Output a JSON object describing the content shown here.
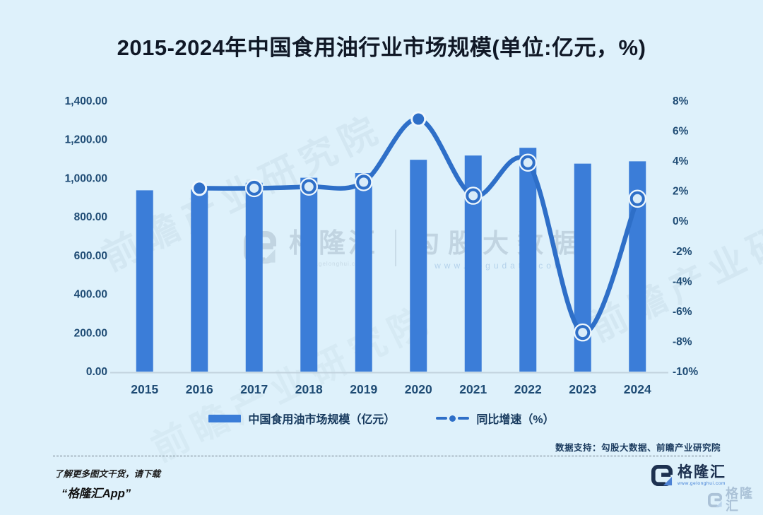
{
  "page": {
    "background": "#def1fb",
    "title": "2015-2024年中国食用油行业市场规模(单位:亿元，%)"
  },
  "legend": {
    "bar_label": "中国食用油市场规模（亿元）",
    "line_label": "同比增速（%）"
  },
  "data_support": "数据支持：勾股大数据、前瞻产业研究院",
  "footer": {
    "promo_line1": "了解更多图文干货，请下载",
    "promo_line2": "“格隆汇App”",
    "brand_name": "格隆汇",
    "brand_url": "www.gelonghui.com"
  },
  "watermarks": {
    "center_brand": "格隆汇",
    "center_brand_url": "www.gelonghui.com",
    "center_data": "勾股大数据",
    "center_data_url": "www.gogudata.com",
    "diagonal_text": "前瞻产业研究院"
  },
  "chart_data": {
    "type": "combo_bar_line",
    "title": "2015-2024年中国食用油行业市场规模(单位:亿元，%)",
    "categories": [
      "2015",
      "2016",
      "2017",
      "2018",
      "2019",
      "2020",
      "2021",
      "2022",
      "2023",
      "2024"
    ],
    "series": [
      {
        "name": "中国食用油市场规模（亿元）",
        "type": "bar",
        "axis": "left",
        "values": [
          938,
          942,
          977,
          1003,
          1027,
          1096,
          1118,
          1158,
          1076,
          1088
        ]
      },
      {
        "name": "同比增速（%）",
        "type": "line",
        "axis": "right",
        "values": [
          null,
          2.2,
          2.2,
          2.3,
          2.6,
          6.8,
          1.7,
          3.9,
          -7.4,
          1.5
        ],
        "filled_marker_categories": [
          "2016",
          "2020"
        ]
      }
    ],
    "left_axis": {
      "min": 0,
      "max": 1400,
      "tick_labels": [
        "0.00",
        "200.00",
        "400.00",
        "600.00",
        "800.00",
        "1,000.00",
        "1,200.00",
        "1,400.00"
      ]
    },
    "right_axis": {
      "min": -10,
      "max": 8,
      "tick_labels": [
        "-10%",
        "-8%",
        "-6%",
        "-4%",
        "-2%",
        "0%",
        "2%",
        "4%",
        "6%",
        "8%"
      ]
    },
    "grid": false,
    "legend_position": "bottom",
    "colors": {
      "bar": "#3b7dd8",
      "line": "#2e6fc8",
      "marker_fill": "#d9ecf9",
      "marker_ring": "#eef7fd",
      "axis_text": "#1e4b74",
      "baseline": "#c2d3de"
    }
  }
}
